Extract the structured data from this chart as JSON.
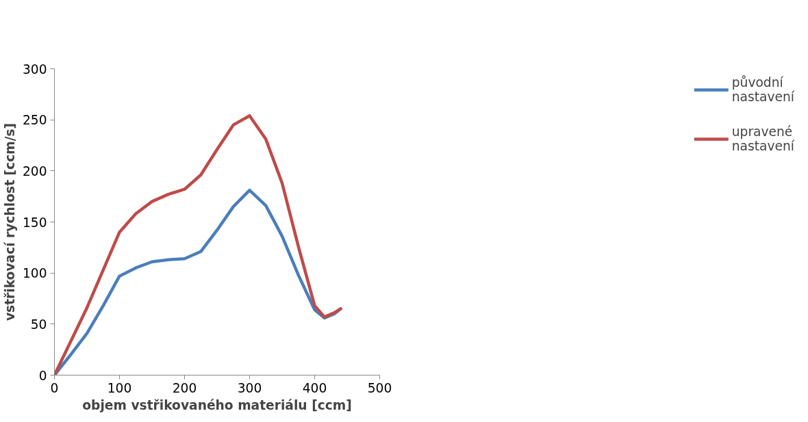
{
  "chart_data": {
    "type": "line",
    "xlabel": "objem vstřikovaného materiálu [ccm]",
    "ylabel": "vstřikovací rychlost [ccm/s]",
    "xlim": [
      0,
      500
    ],
    "xticks": [
      0,
      100,
      200,
      300,
      400,
      500
    ],
    "ylim": [
      0,
      300
    ],
    "yticks": [
      0,
      50,
      100,
      150,
      200,
      250,
      300
    ],
    "grid": false,
    "legend": "right",
    "marker": "none",
    "line_style": "solid",
    "series": [
      {
        "name": "původní nastavení",
        "color": "#4a7ebb",
        "x": [
          0,
          25,
          50,
          75,
          100,
          125,
          150,
          175,
          200,
          225,
          250,
          275,
          300,
          325,
          350,
          375,
          400,
          415,
          430,
          440
        ],
        "values": [
          0,
          20,
          41,
          68,
          97,
          105,
          111,
          113,
          114,
          121,
          142,
          165,
          181,
          166,
          136,
          98,
          64,
          56,
          60,
          65
        ]
      },
      {
        "name": "upravené nastavení",
        "color": "#be4b48",
        "x": [
          0,
          25,
          50,
          75,
          100,
          125,
          150,
          175,
          200,
          225,
          250,
          275,
          300,
          325,
          350,
          375,
          400,
          415,
          430,
          440
        ],
        "values": [
          0,
          33,
          66,
          103,
          140,
          158,
          170,
          177,
          182,
          196,
          221,
          245,
          254,
          231,
          188,
          126,
          68,
          57,
          61,
          65
        ]
      }
    ]
  }
}
